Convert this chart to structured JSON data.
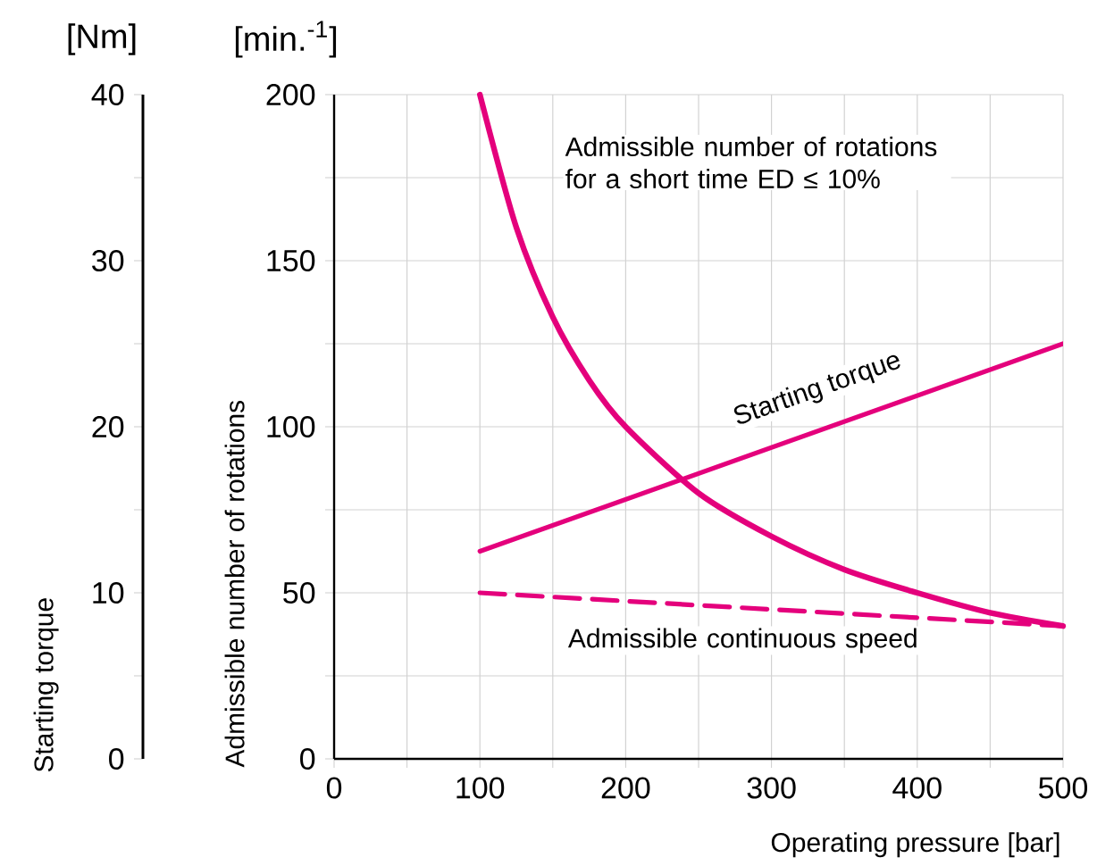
{
  "chart_data": {
    "type": "line",
    "xlabel": "Operating pressure [bar]",
    "ylabel": "Admissible number of rotations",
    "y2label": "Starting torque",
    "annotations": [
      "[Nm]",
      "[min.$^{-1}$]"
    ],
    "xlim": [
      0,
      500
    ],
    "xticks": [
      0,
      100,
      200,
      300,
      400,
      500
    ],
    "ylim": [
      0,
      200
    ],
    "yticks": [
      0,
      50,
      100,
      150,
      200
    ],
    "y2lim": [
      0,
      40
    ],
    "y2ticks": [
      0,
      10,
      20,
      30,
      40
    ],
    "grid": true,
    "series": [
      {
        "name": "Admissible number of rotations for a short time ED ≤ 10%",
        "color": "#e4007c",
        "line_style": "solid",
        "x": [
          100,
          125,
          150,
          175,
          200,
          250,
          300,
          350,
          400,
          450,
          500
        ],
        "values": [
          200,
          160,
          133,
          114,
          100,
          80,
          67,
          57,
          50,
          44,
          40
        ]
      },
      {
        "name": "Starting torque",
        "color": "#e4007c",
        "line_style": "solid",
        "axis": "y2",
        "x": [
          100,
          500
        ],
        "values": [
          12.5,
          25
        ]
      },
      {
        "name": "Admissible continuous speed",
        "color": "#e4007c",
        "line_style": "dashed",
        "x": [
          100,
          500
        ],
        "values": [
          50,
          40
        ]
      }
    ]
  }
}
